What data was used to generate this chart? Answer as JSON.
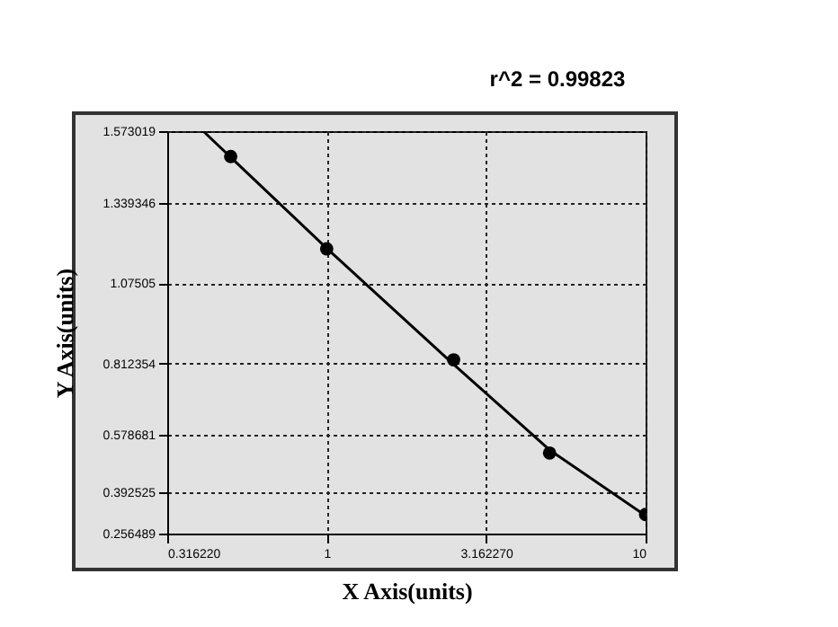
{
  "chart_data": {
    "type": "scatter",
    "title": "r^2 = 0.99823",
    "xlabel": "X Axis(units)",
    "ylabel": "Y Axis(units)",
    "log": "x",
    "grid": true,
    "marker": "circle",
    "xlim": [
      0.31622,
      10
    ],
    "xticks": [
      {
        "value": 0.31622,
        "label": "0.316220"
      },
      1,
      {
        "value": 3.16227,
        "label": "3.162270"
      },
      10
    ],
    "ylim": [
      0.256489,
      1.573019
    ],
    "yticks": [
      0.256489,
      0.392525,
      0.578681,
      0.812354,
      1.07505,
      1.339346,
      1.573019
    ],
    "series": [
      {
        "color": "#000000",
        "x": [
          0.5,
          1,
          2.5,
          5,
          10
        ],
        "values": [
          1.49,
          1.188,
          0.825,
          0.52,
          0.319
        ]
      },
      {
        "type": "line",
        "marker": "none",
        "color": "#000000",
        "x": [
          0.41,
          1,
          2.5,
          5,
          10
        ],
        "values": [
          1.573,
          1.19,
          0.81,
          0.53,
          0.315
        ]
      }
    ]
  }
}
